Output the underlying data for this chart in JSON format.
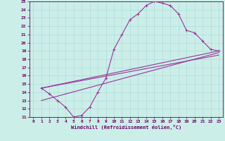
{
  "xlabel": "Windchill (Refroidissement éolien,°C)",
  "bg_color": "#cceee8",
  "line_color": "#993399",
  "grid_color": "#aadddd",
  "axis_color": "#660066",
  "text_color": "#660066",
  "xlim": [
    -0.5,
    23.5
  ],
  "ylim": [
    11,
    25
  ],
  "xticks": [
    0,
    1,
    2,
    3,
    4,
    5,
    6,
    7,
    8,
    9,
    10,
    11,
    12,
    13,
    14,
    15,
    16,
    17,
    18,
    19,
    20,
    21,
    22,
    23
  ],
  "yticks": [
    11,
    12,
    13,
    14,
    15,
    16,
    17,
    18,
    19,
    20,
    21,
    22,
    23,
    24,
    25
  ],
  "curve1_x": [
    1,
    2,
    3,
    4,
    5,
    6,
    7,
    8,
    9,
    10,
    11,
    12,
    13,
    14,
    15,
    16,
    17,
    18,
    19,
    20,
    21,
    22,
    23
  ],
  "curve1_y": [
    14.5,
    13.8,
    13.0,
    12.2,
    11.0,
    11.2,
    12.2,
    14.0,
    15.7,
    19.2,
    21.0,
    22.8,
    23.5,
    24.5,
    25.0,
    24.8,
    24.5,
    23.5,
    21.5,
    21.2,
    20.2,
    19.2,
    19.0
  ],
  "line1_x": [
    1,
    23
  ],
  "line1_y": [
    14.5,
    19.0
  ],
  "line2_x": [
    1,
    23
  ],
  "line2_y": [
    13.0,
    18.8
  ],
  "line3_x": [
    1,
    23
  ],
  "line3_y": [
    14.5,
    18.5
  ],
  "tick_fontsize": 4.5,
  "label_fontsize": 5
}
